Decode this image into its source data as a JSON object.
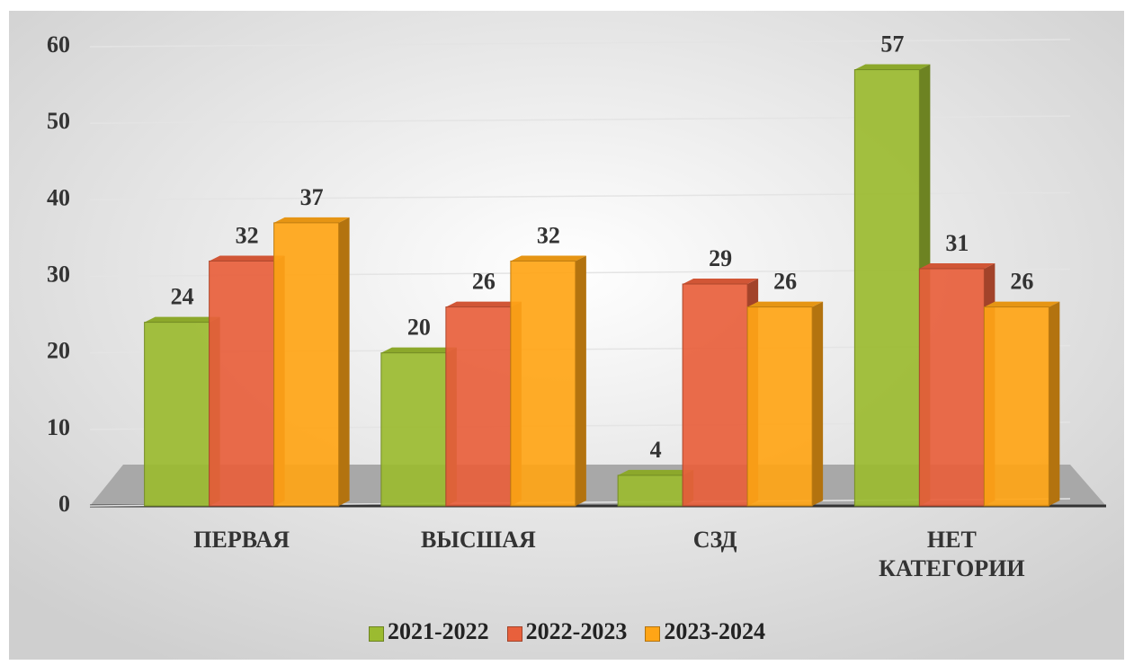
{
  "chart_data": {
    "type": "bar3d",
    "categories": [
      "ПЕРВАЯ",
      "ВЫСШАЯ",
      "СЗД",
      "НЕТ КАТЕГОРИИ"
    ],
    "series": [
      {
        "name": "2021-2022",
        "color": "#9bbb30",
        "values": [
          24,
          20,
          4,
          57
        ]
      },
      {
        "name": "2022-2023",
        "color": "#e8603c",
        "values": [
          32,
          26,
          29,
          31
        ]
      },
      {
        "name": "2023-2024",
        "color": "#ffa516",
        "values": [
          37,
          32,
          26,
          26
        ]
      }
    ],
    "ylim": [
      0,
      60
    ],
    "yticks": [
      0,
      10,
      20,
      30,
      40,
      50,
      60
    ],
    "grid": true,
    "legend": "bottom"
  }
}
